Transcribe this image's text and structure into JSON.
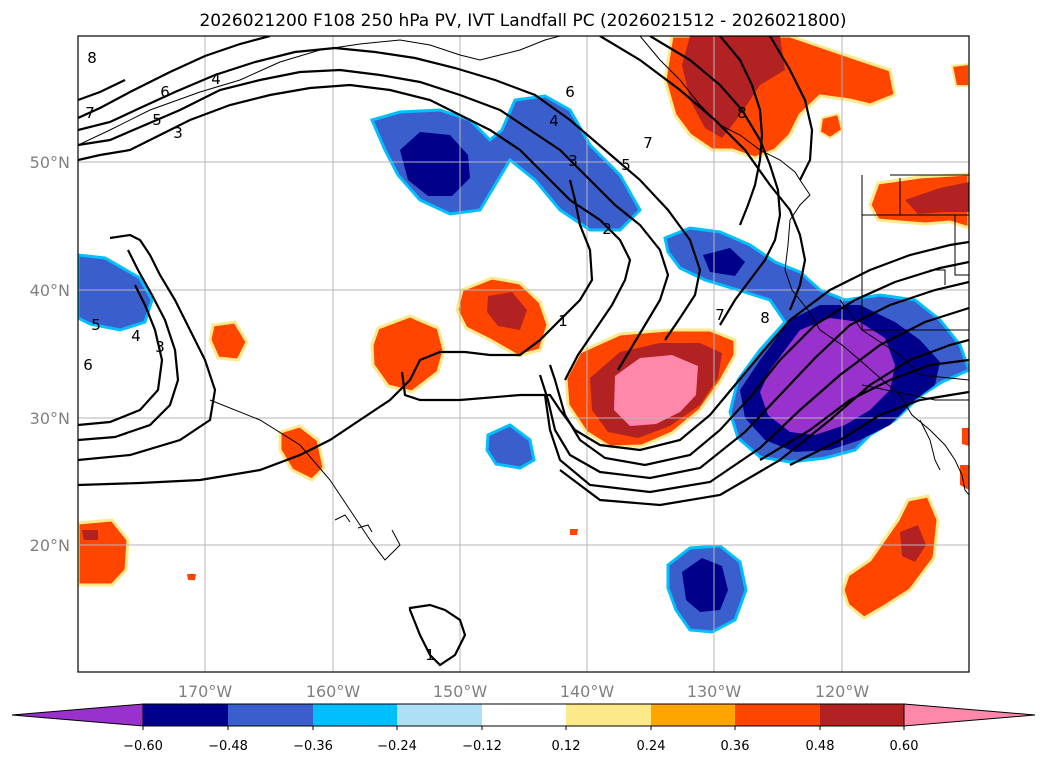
{
  "title": "2026021200 F108 250 hPa PV, IVT Landfall PC (2026021512 - 2026021800)",
  "map": {
    "lon_labels": [
      "170°W",
      "160°W",
      "150°W",
      "140°W",
      "130°W",
      "120°W"
    ],
    "lat_labels": [
      "50°N",
      "40°N",
      "30°N",
      "20°N"
    ],
    "colors": {
      "neg_060": "#9932cc",
      "neg_048": "#00008b",
      "neg_036": "#3a5fcd",
      "neg_024": "#00bfff",
      "neg_012": "#aee0f5",
      "neutral": "#ffffff",
      "pos_012": "#fce98a",
      "pos_024": "#ffa500",
      "pos_036": "#ff4500",
      "pos_048": "#b22222",
      "pos_060": "#ff88aa"
    },
    "contour_labels": [
      "8",
      "7",
      "6",
      "5",
      "4",
      "3",
      "6",
      "4",
      "3",
      "5",
      "7",
      "2",
      "1",
      "7",
      "8",
      "8",
      "1",
      "5",
      "4",
      "3",
      "6"
    ]
  },
  "colorbar": {
    "ticks": [
      "−0.60",
      "−0.48",
      "−0.36",
      "−0.24",
      "−0.12",
      "0.12",
      "0.24",
      "0.36",
      "0.48",
      "0.60"
    ]
  }
}
